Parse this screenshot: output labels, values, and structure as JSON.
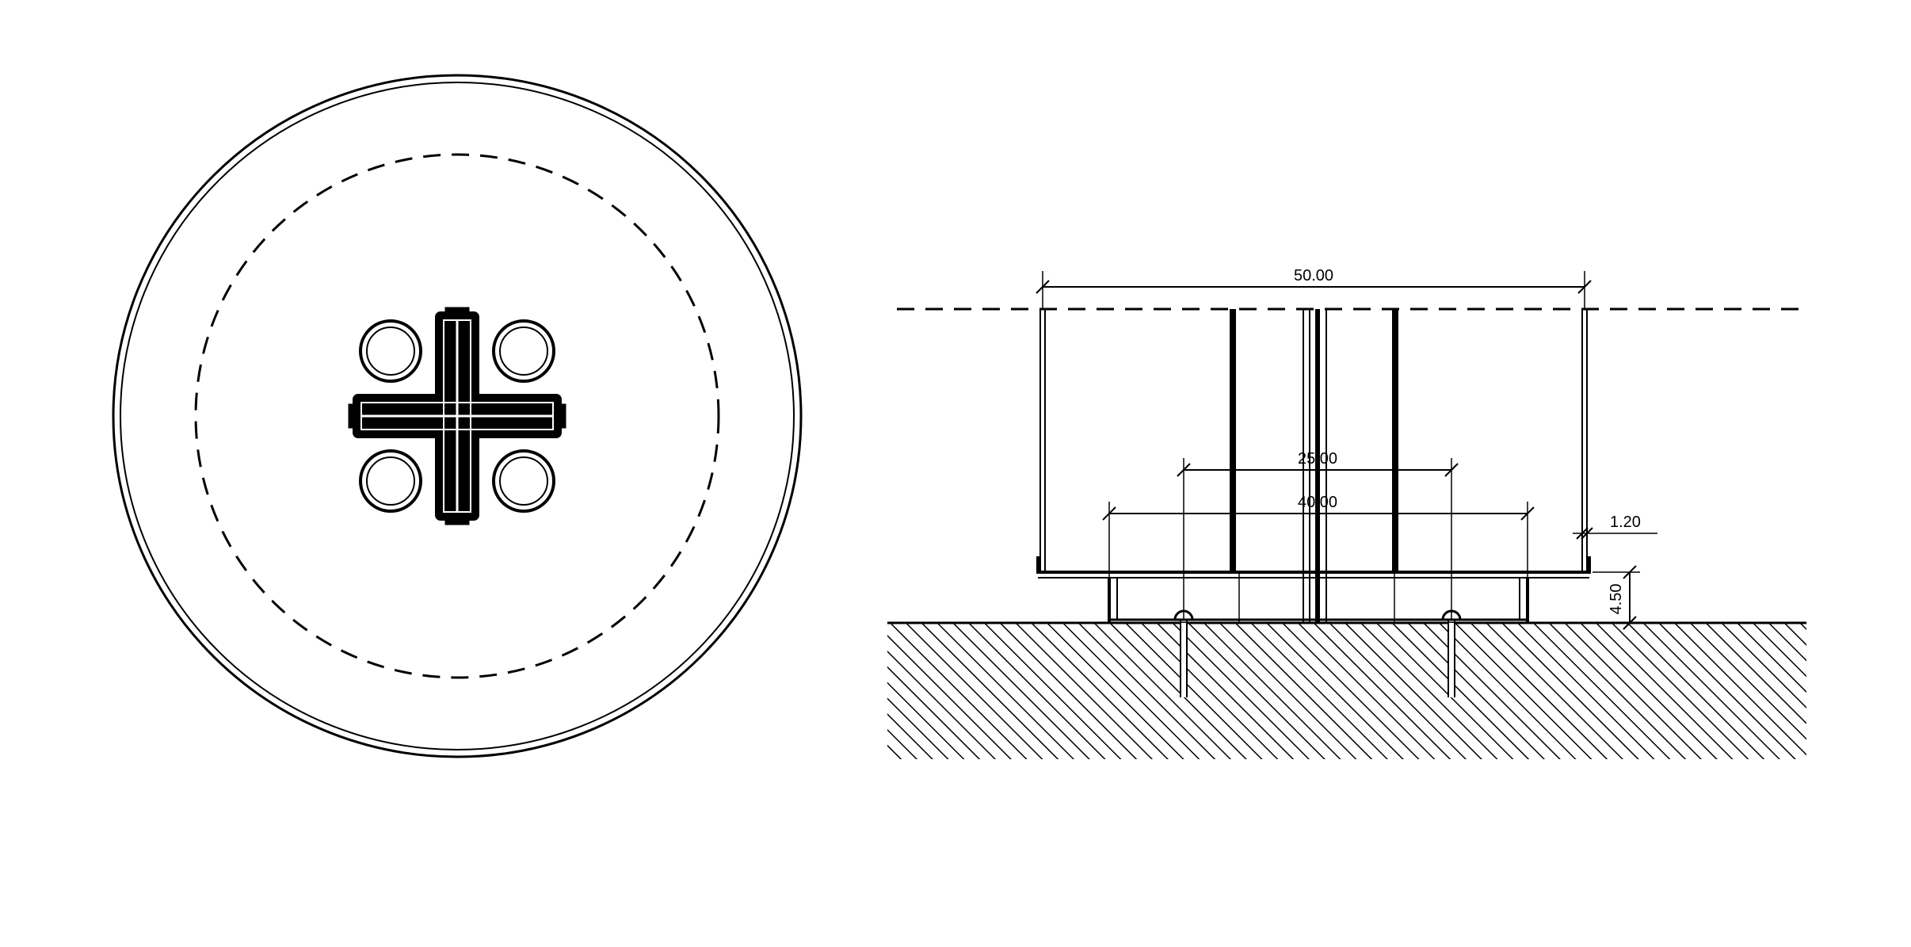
{
  "drawing": {
    "colors": {
      "line": "#000000",
      "background": "#ffffff"
    },
    "plan_view": {
      "bolt_count": 4
    },
    "section_view": {
      "dimensions": {
        "overall_width": "50.00",
        "anchor_spacing": "25.00",
        "base_plate_width": "40.00",
        "shell_thickness": "1.20",
        "plate_height": "4.50"
      }
    }
  }
}
